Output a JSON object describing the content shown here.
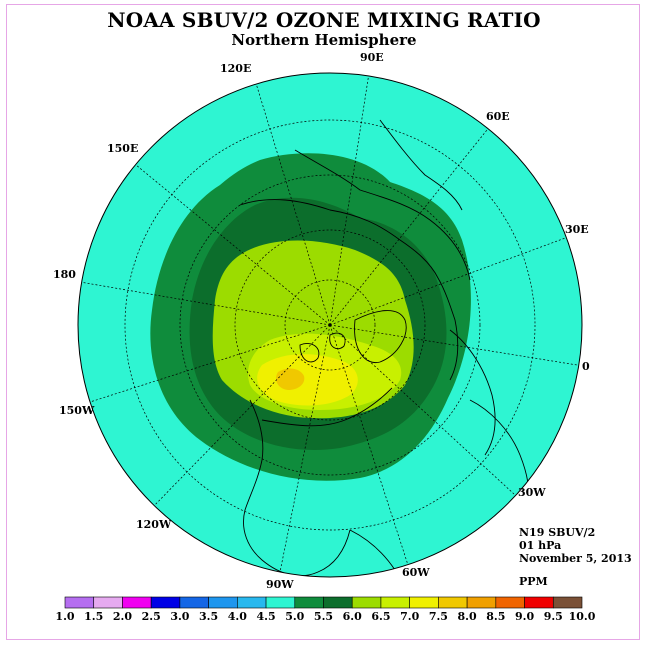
{
  "header": {
    "title": "NOAA SBUV/2 OZONE MIXING RATIO",
    "subtitle": "Northern Hemisphere"
  },
  "map": {
    "projection": "north-polar-stereographic",
    "longitude_labels": [
      "90E",
      "60E",
      "30E",
      "0",
      "30W",
      "60W",
      "90W",
      "120W",
      "150W",
      "180",
      "150E",
      "120E"
    ],
    "ocean_fill": "#2ef5d2",
    "contour_levels_shown": [
      "5.0-5.5",
      "5.5-6.0",
      "6.0-6.5",
      "6.5-7.0",
      "7.0-7.5",
      "7.5-8.0"
    ]
  },
  "info": {
    "satellite": "N19 SBUV/2",
    "pressure": "01 hPa",
    "date": "November 5, 2013",
    "unit": "PPM"
  },
  "colorbar": {
    "ticks": [
      "1.0",
      "1.5",
      "2.0",
      "2.5",
      "3.0",
      "3.5",
      "4.0",
      "4.5",
      "5.0",
      "5.5",
      "6.0",
      "6.5",
      "7.0",
      "7.5",
      "8.0",
      "8.5",
      "9.0",
      "9.5",
      "10.0"
    ],
    "colors": [
      "#b56ef0",
      "#e6aaf0",
      "#f000f0",
      "#0000e6",
      "#1466e6",
      "#1e96ee",
      "#28b8ee",
      "#2ef5d2",
      "#0f8c3c",
      "#0c6e2c",
      "#9cdc00",
      "#c8f000",
      "#f0f000",
      "#f0c800",
      "#f0a000",
      "#f06400",
      "#f00000",
      "#7a5036"
    ]
  }
}
